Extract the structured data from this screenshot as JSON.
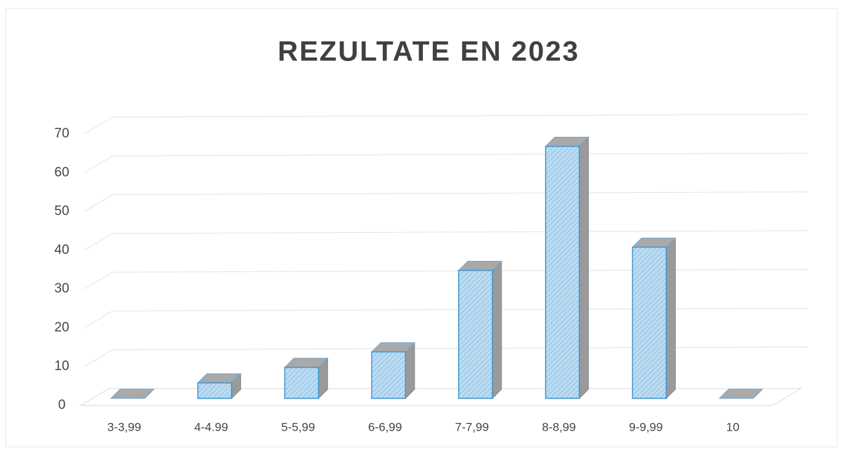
{
  "chart_data": {
    "type": "bar3d",
    "title": "REZULTATE EN 2023",
    "categories": [
      "3-3,99",
      "4-4.99",
      "5-5,99",
      "6-6,99",
      "7-7,99",
      "8-8,99",
      "9-9,99",
      "10"
    ],
    "values": [
      0,
      4,
      8,
      12,
      33,
      65,
      39,
      0
    ],
    "color": "#bcdcf2",
    "ylim": [
      0,
      70
    ],
    "yticks": [
      0,
      10,
      20,
      30,
      40,
      50,
      60,
      70
    ],
    "grid": true
  }
}
